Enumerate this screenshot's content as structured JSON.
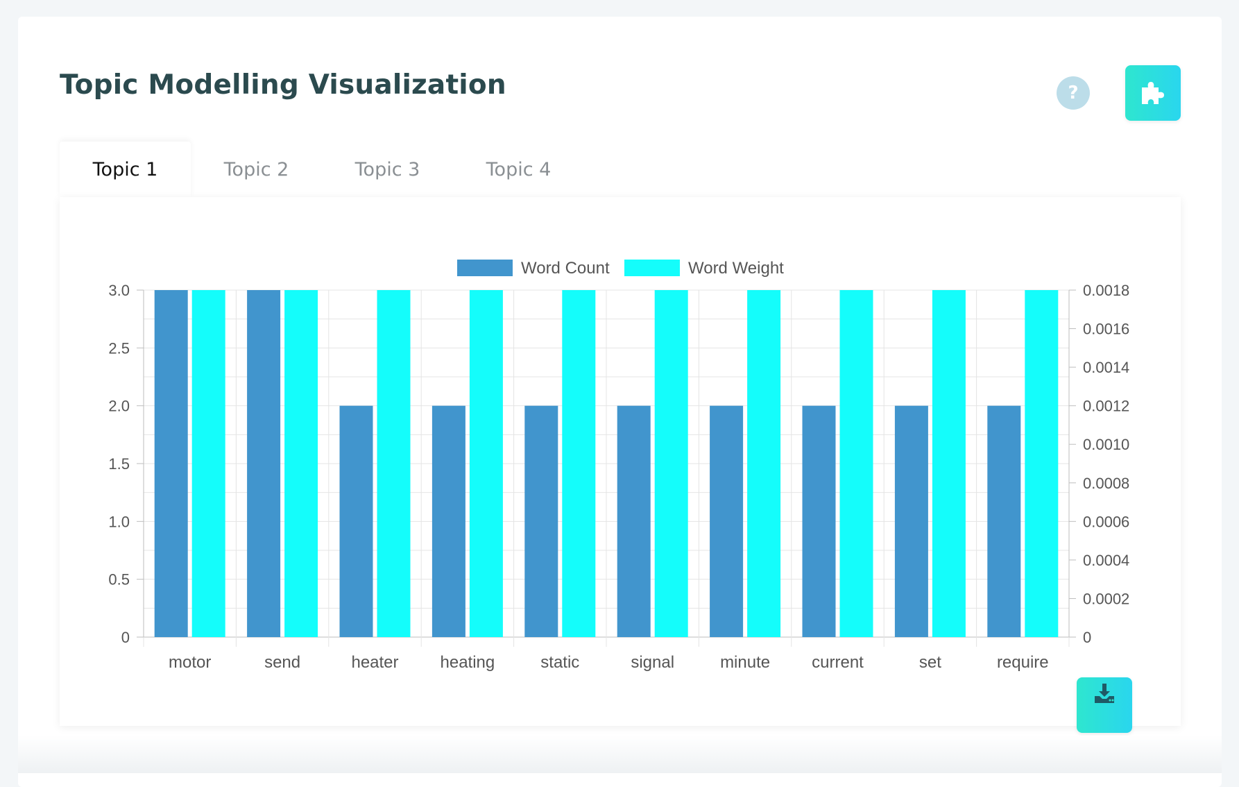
{
  "page": {
    "title": "Topic Modelling Visualization",
    "help_label": "?"
  },
  "tabs": [
    {
      "label": "Topic 1",
      "active": true
    },
    {
      "label": "Topic 2",
      "active": false
    },
    {
      "label": "Topic 3",
      "active": false
    },
    {
      "label": "Topic 4",
      "active": false
    }
  ],
  "icons": {
    "plugin": "puzzle-piece-icon",
    "download": "download-icon",
    "help": "question-icon"
  },
  "colors": {
    "word_count": "#4195cd",
    "word_weight": "#14fdfb",
    "accent_gradient_start": "#2ee6cf",
    "accent_gradient_end": "#2ad6ee",
    "title": "#2b4a4e"
  },
  "chart_data": {
    "type": "bar",
    "title": "",
    "legend_position": "top",
    "grid": true,
    "categories": [
      "motor",
      "send",
      "heater",
      "heating",
      "static",
      "signal",
      "minute",
      "current",
      "set",
      "require"
    ],
    "series": [
      {
        "name": "Word Count",
        "axis": "left",
        "values": [
          3,
          3,
          2,
          2,
          2,
          2,
          2,
          2,
          2,
          2
        ]
      },
      {
        "name": "Word Weight",
        "axis": "right",
        "values": [
          0.0018,
          0.0018,
          0.0018,
          0.0018,
          0.0018,
          0.0018,
          0.0018,
          0.0018,
          0.0018,
          0.0018
        ]
      }
    ],
    "y_left": {
      "range": [
        0,
        3
      ],
      "ticks": [
        "0",
        "0.5",
        "1.0",
        "1.5",
        "2.0",
        "2.5",
        "3.0"
      ]
    },
    "y_right": {
      "range": [
        0,
        0.0018
      ],
      "ticks": [
        "0",
        "0.0002",
        "0.0004",
        "0.0006",
        "0.0008",
        "0.0010",
        "0.0012",
        "0.0014",
        "0.0016",
        "0.0018"
      ]
    }
  }
}
